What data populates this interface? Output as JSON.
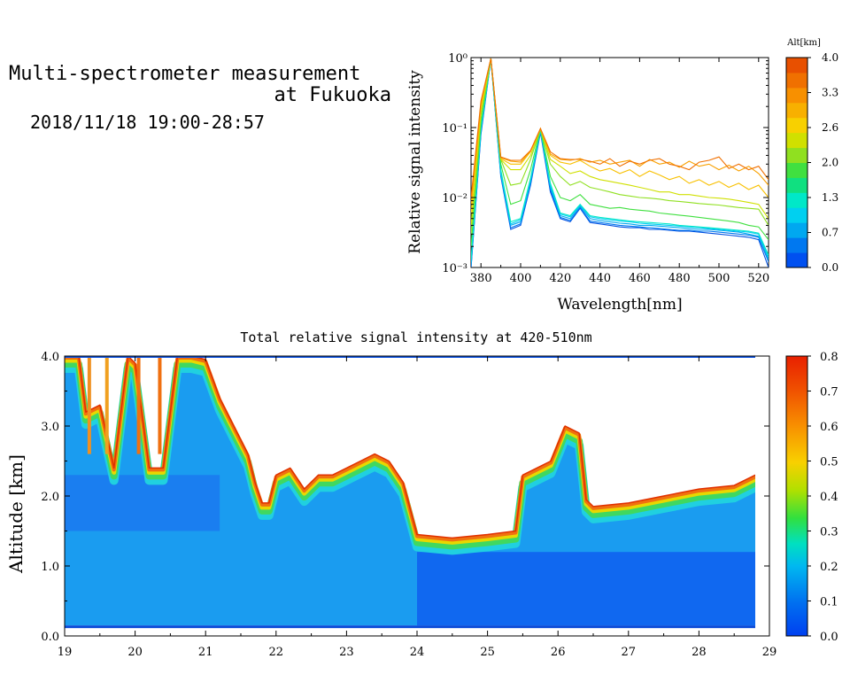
{
  "header": {
    "title_line1": "Multi-spectrometer measurement",
    "title_line2": "at Fukuoka",
    "date_range": "2018/11/18 19:00-28:57"
  },
  "chart_data": [
    {
      "type": "line",
      "xlabel": "Wavelength[nm]",
      "ylabel": "Relative signal intensity",
      "ylog": true,
      "xlim": [
        375,
        525
      ],
      "ylim": [
        0.001,
        1
      ],
      "x_ticks": [
        "380",
        "400",
        "420",
        "440",
        "460",
        "480",
        "500",
        "520"
      ],
      "y_ticks": [
        "10⁰",
        "10⁻¹",
        "10⁻²",
        "10⁻³"
      ],
      "colorbar": {
        "title": "Alt[km]",
        "tick_labels": [
          "4.0",
          "3.3",
          "2.6",
          "2.0",
          "1.3",
          "0.7",
          "0.0"
        ],
        "colors": [
          "#0050f0",
          "#0078f0",
          "#00a8f0",
          "#00d0f0",
          "#00e8c8",
          "#10e080",
          "#40e040",
          "#90e020",
          "#d0e000",
          "#f8d000",
          "#f8b000",
          "#f89000",
          "#f07000",
          "#e85000"
        ]
      },
      "x": [
        375,
        380,
        385,
        390,
        395,
        400,
        405,
        410,
        415,
        420,
        425,
        430,
        435,
        440,
        445,
        450,
        455,
        460,
        465,
        470,
        475,
        480,
        485,
        490,
        495,
        500,
        505,
        510,
        515,
        520,
        525
      ],
      "series": [
        {
          "alt": 0.0,
          "color": "#0050e0",
          "values": [
            0.001,
            0.08,
            0.95,
            0.02,
            0.0035,
            0.004,
            0.015,
            0.085,
            0.012,
            0.005,
            0.0045,
            0.007,
            0.0044,
            0.0042,
            0.004,
            0.0038,
            0.0037,
            0.0037,
            0.0035,
            0.0035,
            0.0034,
            0.0033,
            0.0033,
            0.0032,
            0.0031,
            0.003,
            0.0029,
            0.0028,
            0.0027,
            0.0025,
            0.001
          ]
        },
        {
          "alt": 0.4,
          "color": "#0078f0",
          "values": [
            0.001,
            0.085,
            0.96,
            0.021,
            0.0037,
            0.0042,
            0.016,
            0.088,
            0.013,
            0.0052,
            0.0047,
            0.0072,
            0.0046,
            0.0044,
            0.0042,
            0.004,
            0.0039,
            0.0038,
            0.0037,
            0.0036,
            0.0035,
            0.0034,
            0.0034,
            0.0033,
            0.0033,
            0.0032,
            0.0031,
            0.003,
            0.0029,
            0.0027,
            0.0012
          ]
        },
        {
          "alt": 0.8,
          "color": "#00a8f0",
          "values": [
            0.0011,
            0.09,
            0.96,
            0.022,
            0.004,
            0.0045,
            0.017,
            0.09,
            0.014,
            0.0055,
            0.005,
            0.0075,
            0.005,
            0.0047,
            0.0045,
            0.0043,
            0.0042,
            0.004,
            0.004,
            0.0039,
            0.0038,
            0.0037,
            0.0036,
            0.0035,
            0.0035,
            0.0034,
            0.0033,
            0.0032,
            0.003,
            0.0028,
            0.0013
          ]
        },
        {
          "alt": 1.1,
          "color": "#00d0f0",
          "values": [
            0.0012,
            0.095,
            0.97,
            0.023,
            0.0042,
            0.0048,
            0.018,
            0.092,
            0.015,
            0.0058,
            0.0053,
            0.0078,
            0.0053,
            0.005,
            0.0048,
            0.0046,
            0.0045,
            0.0043,
            0.0042,
            0.0041,
            0.004,
            0.0039,
            0.0038,
            0.0037,
            0.0036,
            0.0035,
            0.0034,
            0.0033,
            0.0032,
            0.003,
            0.0014
          ]
        },
        {
          "alt": 1.5,
          "color": "#00e8c8",
          "values": [
            0.0013,
            0.1,
            0.97,
            0.025,
            0.0045,
            0.005,
            0.019,
            0.093,
            0.016,
            0.006,
            0.0055,
            0.008,
            0.0055,
            0.0052,
            0.005,
            0.0048,
            0.0046,
            0.0045,
            0.0044,
            0.0043,
            0.0042,
            0.004,
            0.0039,
            0.0038,
            0.0037,
            0.0036,
            0.0035,
            0.0034,
            0.0033,
            0.0031,
            0.0015
          ]
        },
        {
          "alt": 1.9,
          "color": "#40e040",
          "values": [
            0.002,
            0.12,
            0.97,
            0.03,
            0.008,
            0.009,
            0.025,
            0.095,
            0.02,
            0.01,
            0.009,
            0.011,
            0.008,
            0.0075,
            0.007,
            0.0072,
            0.0068,
            0.0066,
            0.0064,
            0.006,
            0.0058,
            0.0056,
            0.0054,
            0.0052,
            0.005,
            0.0048,
            0.0046,
            0.0044,
            0.004,
            0.0038,
            0.0025
          ]
        },
        {
          "alt": 2.3,
          "color": "#90e020",
          "values": [
            0.003,
            0.15,
            0.97,
            0.035,
            0.015,
            0.016,
            0.035,
            0.095,
            0.03,
            0.02,
            0.015,
            0.017,
            0.014,
            0.013,
            0.012,
            0.011,
            0.0105,
            0.01,
            0.0098,
            0.0095,
            0.009,
            0.0088,
            0.0085,
            0.0082,
            0.008,
            0.0078,
            0.0075,
            0.0072,
            0.007,
            0.0068,
            0.004
          ]
        },
        {
          "alt": 2.7,
          "color": "#d0e000",
          "values": [
            0.004,
            0.17,
            0.97,
            0.035,
            0.025,
            0.025,
            0.04,
            0.096,
            0.035,
            0.028,
            0.022,
            0.024,
            0.02,
            0.018,
            0.017,
            0.016,
            0.015,
            0.014,
            0.013,
            0.012,
            0.012,
            0.011,
            0.011,
            0.0105,
            0.01,
            0.0098,
            0.0095,
            0.009,
            0.0085,
            0.008,
            0.005
          ]
        },
        {
          "alt": 3.1,
          "color": "#f8c000",
          "values": [
            0.006,
            0.2,
            0.97,
            0.036,
            0.03,
            0.03,
            0.045,
            0.096,
            0.04,
            0.032,
            0.03,
            0.034,
            0.028,
            0.024,
            0.026,
            0.022,
            0.025,
            0.02,
            0.024,
            0.021,
            0.018,
            0.02,
            0.016,
            0.018,
            0.015,
            0.017,
            0.014,
            0.016,
            0.013,
            0.015,
            0.01
          ]
        },
        {
          "alt": 3.5,
          "color": "#f8a000",
          "values": [
            0.008,
            0.22,
            0.97,
            0.037,
            0.033,
            0.032,
            0.046,
            0.096,
            0.042,
            0.035,
            0.034,
            0.036,
            0.032,
            0.034,
            0.03,
            0.032,
            0.034,
            0.028,
            0.035,
            0.03,
            0.032,
            0.027,
            0.033,
            0.028,
            0.03,
            0.025,
            0.029,
            0.024,
            0.028,
            0.022,
            0.015
          ]
        },
        {
          "alt": 3.9,
          "color": "#f07000",
          "values": [
            0.01,
            0.24,
            0.97,
            0.038,
            0.034,
            0.034,
            0.047,
            0.097,
            0.045,
            0.036,
            0.035,
            0.035,
            0.033,
            0.03,
            0.036,
            0.028,
            0.033,
            0.03,
            0.034,
            0.036,
            0.03,
            0.028,
            0.025,
            0.032,
            0.034,
            0.038,
            0.026,
            0.03,
            0.025,
            0.028,
            0.018
          ]
        }
      ]
    },
    {
      "type": "heatmap",
      "title": "Total relative signal intensity at 420-510nm",
      "xlabel": "",
      "ylabel": "Altitude [km]",
      "xlim": [
        19,
        29
      ],
      "ylim": [
        0,
        4
      ],
      "x_ticks": [
        "19",
        "20",
        "21",
        "22",
        "23",
        "24",
        "25",
        "26",
        "27",
        "28",
        "29"
      ],
      "y_ticks": [
        "0.0",
        "1.0",
        "2.0",
        "3.0",
        "4.0"
      ],
      "colorbar": {
        "range": [
          0,
          0.8
        ],
        "tick_labels": [
          "0.8",
          "0.7",
          "0.6",
          "0.5",
          "0.4",
          "0.3",
          "0.2",
          "0.1",
          "0.0"
        ]
      },
      "cloud_base_km": {
        "time": [
          19.0,
          19.2,
          19.3,
          19.5,
          19.7,
          19.9,
          20.0,
          20.2,
          20.4,
          20.6,
          20.8,
          21.0,
          21.2,
          21.4,
          21.6,
          21.7,
          21.8,
          21.9,
          22.0,
          22.2,
          22.4,
          22.6,
          22.8,
          23.0,
          23.2,
          23.4,
          23.6,
          23.8,
          24.0,
          24.5,
          25.0,
          25.4,
          25.5,
          25.7,
          25.9,
          26.1,
          26.3,
          26.4,
          26.5,
          27.0,
          27.5,
          28.0,
          28.5,
          28.8
        ],
        "height": [
          4.0,
          4.0,
          3.2,
          3.3,
          2.4,
          4.0,
          3.9,
          2.4,
          2.4,
          4.0,
          4.0,
          3.95,
          3.4,
          3.0,
          2.6,
          2.2,
          1.9,
          1.9,
          2.3,
          2.4,
          2.1,
          2.3,
          2.3,
          2.4,
          2.5,
          2.6,
          2.5,
          2.2,
          1.45,
          1.4,
          1.45,
          1.5,
          2.3,
          2.4,
          2.5,
          3.0,
          2.9,
          1.95,
          1.85,
          1.9,
          2.0,
          2.1,
          2.15,
          2.3
        ]
      }
    }
  ]
}
